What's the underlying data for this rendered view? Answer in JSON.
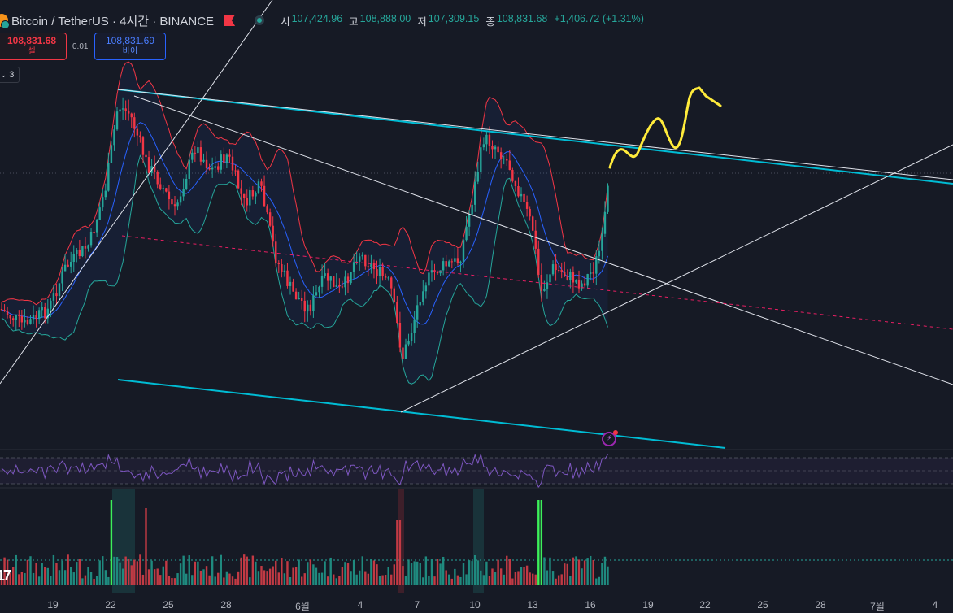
{
  "header": {
    "symbol": "Bitcoin / TetherUS · 4시간 · BINANCE",
    "ohlc": [
      {
        "label": "시",
        "value": "107,424.96"
      },
      {
        "label": "고",
        "value": "108,888.00"
      },
      {
        "label": "저",
        "value": "107,309.15"
      },
      {
        "label": "종",
        "value": "108,831.68"
      },
      {
        "label": "",
        "value": "+1,406.72 (+1.31%)"
      }
    ]
  },
  "trade": {
    "sell_price": "108,831.68",
    "sell_label": "셀",
    "spread": "0.01",
    "buy_price": "108,831.69",
    "buy_label": "바이"
  },
  "indicator_toggle": "3",
  "x_axis": [
    "19",
    "22",
    "25",
    "28",
    "6월",
    "4",
    "7",
    "10",
    "13",
    "16",
    "19",
    "22",
    "25",
    "28",
    "7월",
    "4"
  ],
  "colors": {
    "background": "#161a25",
    "up": "#26a69a",
    "down": "#f23645",
    "upper_band": "#f23645",
    "lower_band": "#26a69a",
    "basis": "#2962ff",
    "trendline": "#00bcd4",
    "annotation": "#ffeb3b",
    "rsi": "#7e57c2"
  },
  "icons": {
    "alert": "lightning-alert-icon",
    "logo": "tradingview-logo"
  }
}
